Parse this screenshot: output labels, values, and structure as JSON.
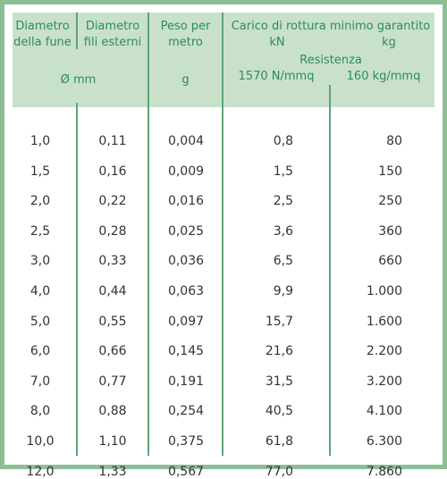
{
  "header": {
    "rope_diameter": [
      "Diametro",
      "della fune"
    ],
    "wire_diameter": [
      "Diametro",
      "fili esterni"
    ],
    "weight": [
      "Peso per",
      "metro"
    ],
    "load": "Carico di rottura minimo garantito",
    "kn": "kN",
    "kg": "kg",
    "resistance": "Resistenza",
    "res_n": "1570 N/mmq",
    "res_kg": "160 kg/mmq",
    "unit_mm": "Ø mm",
    "unit_g": "g"
  },
  "rows": [
    [
      "1,0",
      "0,11",
      "0,004",
      "0,8",
      "80"
    ],
    [
      "1,5",
      "0,16",
      "0,009",
      "1,5",
      "150"
    ],
    [
      "2,0",
      "0,22",
      "0,016",
      "2,5",
      "250"
    ],
    [
      "2,5",
      "0,28",
      "0,025",
      "3,6",
      "360"
    ],
    [
      "3,0",
      "0,33",
      "0,036",
      "6,5",
      "660"
    ],
    [
      "4,0",
      "0,44",
      "0,063",
      "9,9",
      "1.000"
    ],
    [
      "5,0",
      "0,55",
      "0,097",
      "15,7",
      "1.600"
    ],
    [
      "6,0",
      "0,66",
      "0,145",
      "21,6",
      "2.200"
    ],
    [
      "7,0",
      "0,77",
      "0,191",
      "31,5",
      "3.200"
    ],
    [
      "8,0",
      "0,88",
      "0,254",
      "40,5",
      "4.100"
    ],
    [
      "10,0",
      "1,10",
      "0,375",
      "61,8",
      "6.300"
    ],
    [
      "12,0",
      "1,33",
      "0,567",
      "77,0",
      "7.860"
    ]
  ]
}
